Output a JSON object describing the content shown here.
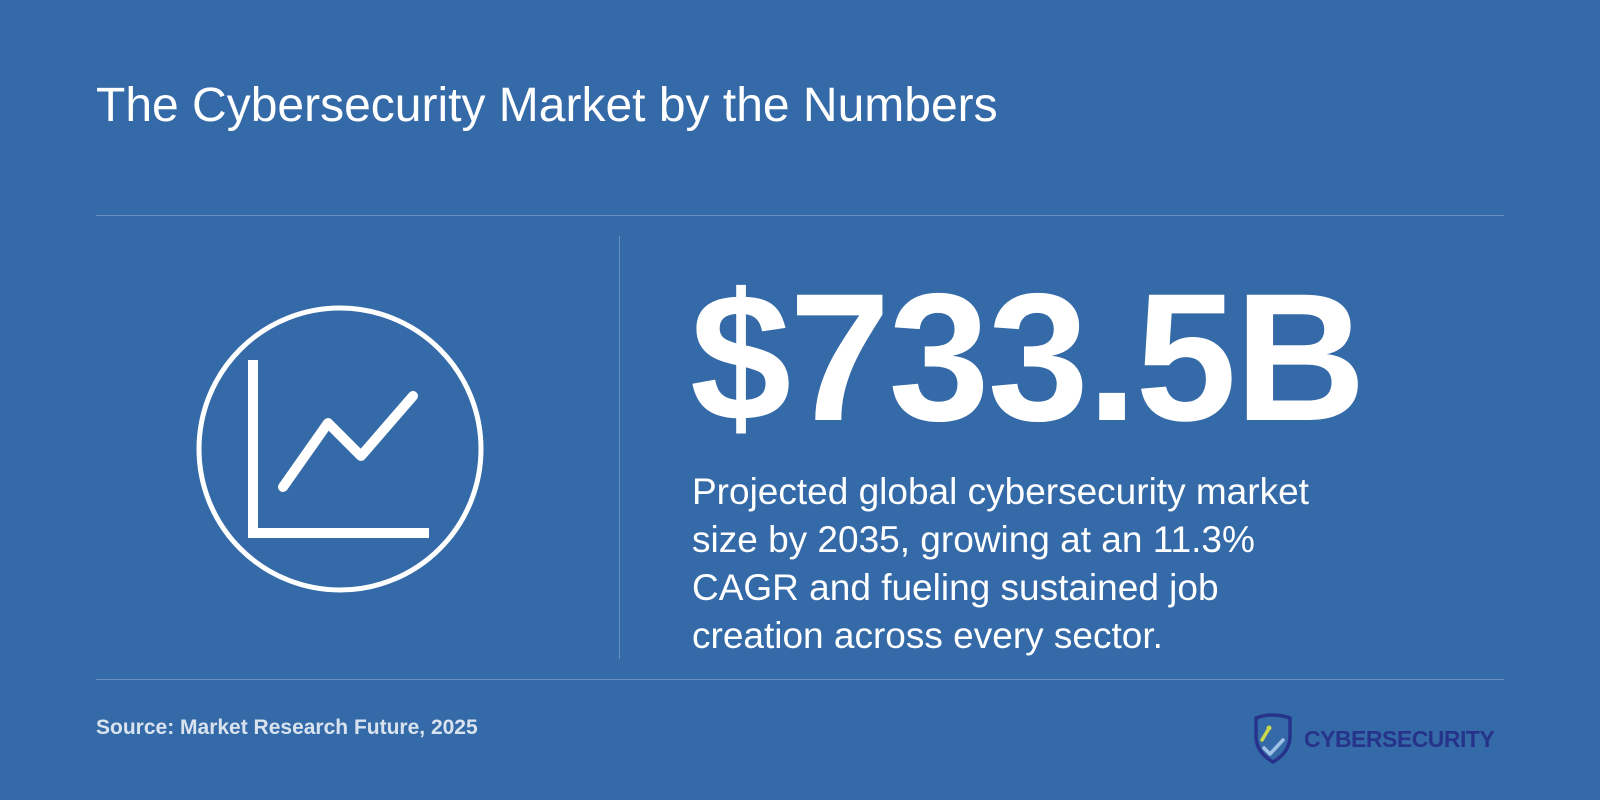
{
  "header": {
    "title": "The Cybersecurity Market by the Numbers"
  },
  "stat": {
    "value": "$733.5B",
    "description": "Projected global cybersecurity market size by 2035, growing at an 11.3% CAGR and fueling sustained job creation across every sector.",
    "icon": "line-chart-icon"
  },
  "footer": {
    "source": "Source: Market Research Future, 2025",
    "brand": "CYBERSECURITY",
    "brand_icon": "shield-icon"
  },
  "colors": {
    "background": "#356aa8",
    "text": "#ffffff",
    "brand_text": "#27338a",
    "brand_accent": "#c8d84a"
  }
}
